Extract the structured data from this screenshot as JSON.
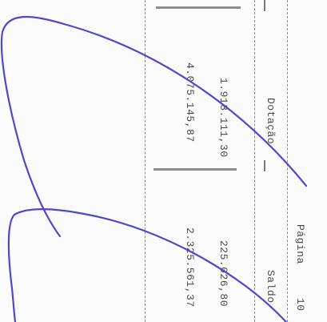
{
  "header": {
    "dotacao_label": "Dotação",
    "saldo_label": "Saldo",
    "pagina_label": "Página",
    "page_number": "10"
  },
  "rows": [
    {
      "dotacao": "1.918.111,30",
      "saldo": "225.026,80"
    },
    {
      "dotacao": "4.075.145,87",
      "saldo": "2.325.561,37"
    }
  ],
  "colors": {
    "signature_ink": "#5148c9",
    "text": "#4a4a4a"
  }
}
